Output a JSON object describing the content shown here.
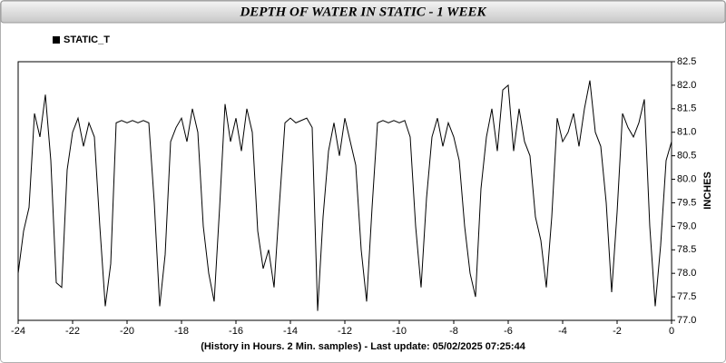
{
  "chart_data": {
    "type": "line",
    "title": "DEPTH OF WATER IN STATIC - 1 WEEK",
    "xlabel": "(History in Hours. 2 Min. samples) - Last update: 05/02/2025 07:25:44",
    "ylabel": "INCHES",
    "xlim": [
      -24,
      0
    ],
    "ylim": [
      77,
      82.5
    ],
    "xticks": [
      -24,
      -22,
      -20,
      -18,
      -16,
      -14,
      -12,
      -10,
      -8,
      -6,
      -4,
      -2,
      0
    ],
    "yticks": [
      {
        "value": 77,
        "label": "77.0"
      },
      77.5,
      {
        "value": 78,
        "label": "78.0"
      },
      78.5,
      {
        "value": 79,
        "label": "79.0"
      },
      79.5,
      {
        "value": 80,
        "label": "80.0"
      },
      80.5,
      {
        "value": 81,
        "label": "81.0"
      },
      81.5,
      {
        "value": 82,
        "label": "82.0"
      },
      82.5
    ],
    "grid": false,
    "legend": "top-left",
    "x": [
      -24,
      -23.8,
      -23.6,
      -23.4,
      -23.2,
      -23,
      -22.8,
      -22.6,
      -22.4,
      -22.2,
      -22,
      -21.8,
      -21.6,
      -21.4,
      -21.2,
      -21,
      -20.8,
      -20.6,
      -20.4,
      -20.2,
      -20,
      -19.8,
      -19.6,
      -19.4,
      -19.2,
      -19,
      -18.8,
      -18.6,
      -18.4,
      -18.2,
      -18,
      -17.8,
      -17.6,
      -17.4,
      -17.2,
      -17,
      -16.8,
      -16.6,
      -16.4,
      -16.2,
      -16,
      -15.8,
      -15.6,
      -15.4,
      -15.2,
      -15,
      -14.8,
      -14.6,
      -14.4,
      -14.2,
      -14,
      -13.8,
      -13.6,
      -13.4,
      -13.2,
      -13,
      -12.8,
      -12.6,
      -12.4,
      -12.2,
      -12,
      -11.8,
      -11.6,
      -11.4,
      -11.2,
      -11,
      -10.8,
      -10.6,
      -10.4,
      -10.2,
      -10,
      -9.8,
      -9.6,
      -9.4,
      -9.2,
      -9,
      -8.8,
      -8.6,
      -8.4,
      -8.2,
      -8,
      -7.8,
      -7.6,
      -7.4,
      -7.2,
      -7,
      -6.8,
      -6.6,
      -6.4,
      -6.2,
      -6,
      -5.8,
      -5.6,
      -5.4,
      -5.2,
      -5,
      -4.8,
      -4.6,
      -4.4,
      -4.2,
      -4,
      -3.8,
      -3.6,
      -3.4,
      -3.2,
      -3,
      -2.8,
      -2.6,
      -2.4,
      -2.2,
      -2,
      -1.8,
      -1.6,
      -1.4,
      -1.2,
      -1,
      -0.8,
      -0.6,
      -0.4,
      -0.2,
      0
    ],
    "series": [
      {
        "name": "STATIC_T",
        "color": "#000000",
        "values": [
          78.0,
          78.9,
          79.4,
          81.4,
          80.9,
          81.8,
          80.4,
          77.8,
          77.7,
          80.2,
          81.0,
          81.3,
          80.7,
          81.2,
          80.9,
          79.0,
          77.3,
          78.2,
          81.2,
          81.25,
          81.2,
          81.25,
          81.2,
          81.25,
          81.2,
          79.5,
          77.3,
          78.4,
          80.8,
          81.1,
          81.3,
          80.8,
          81.5,
          81.0,
          79.0,
          78.0,
          77.4,
          79.4,
          81.6,
          80.8,
          81.3,
          80.6,
          81.5,
          81.0,
          78.9,
          78.1,
          78.5,
          77.7,
          79.5,
          81.2,
          81.3,
          81.2,
          81.25,
          81.3,
          81.1,
          77.2,
          79.2,
          80.6,
          81.2,
          80.5,
          81.3,
          80.8,
          80.3,
          78.5,
          77.4,
          79.4,
          81.2,
          81.25,
          81.2,
          81.25,
          81.2,
          81.25,
          80.9,
          79.0,
          77.7,
          79.6,
          80.9,
          81.3,
          80.7,
          81.2,
          80.9,
          80.4,
          79.0,
          78.0,
          77.5,
          79.8,
          80.9,
          81.5,
          80.6,
          81.9,
          82.0,
          80.6,
          81.5,
          80.8,
          80.5,
          79.2,
          78.7,
          77.7,
          79.2,
          81.3,
          80.8,
          81.0,
          81.4,
          80.7,
          81.5,
          82.1,
          81.0,
          80.7,
          79.5,
          77.6,
          79.3,
          81.4,
          81.1,
          80.9,
          81.2,
          81.7,
          79.0,
          77.3,
          78.6,
          80.4,
          80.8
        ]
      }
    ]
  }
}
